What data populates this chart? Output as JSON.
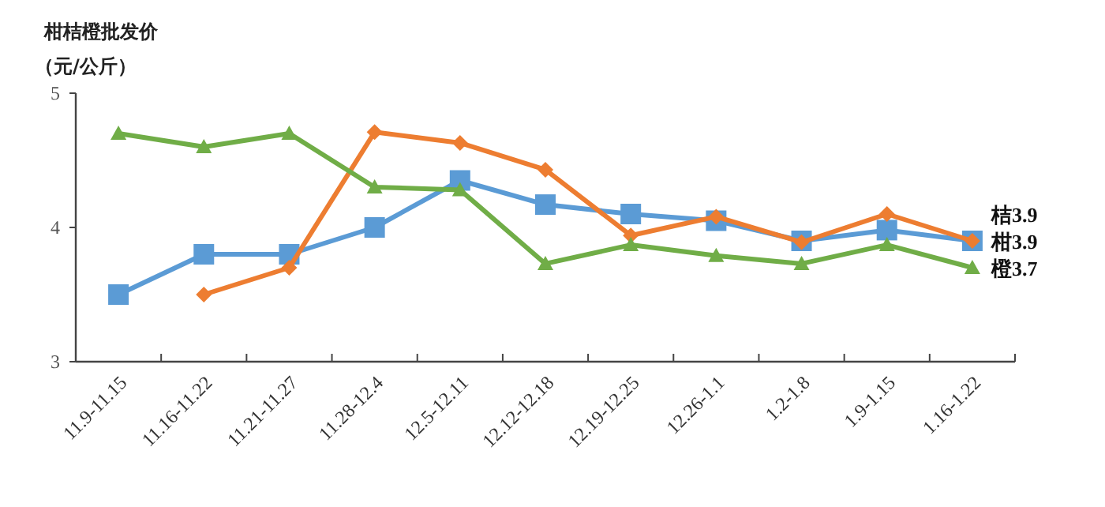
{
  "chart_data": {
    "type": "line",
    "title": "柑桔橙批发价",
    "subtitle": "（元/公斤）",
    "categories": [
      "11.9-11.15",
      "11.16-11.22",
      "11.21-11.27",
      "11.28-12.4",
      "12.5-12.11",
      "12.12-12.18",
      "12.19-12.25",
      "12.26-1.1",
      "1.2-1.8",
      "1.9-1.15",
      "1.16-1.22"
    ],
    "series": [
      {
        "name": "柑",
        "color": "#5b9bd5",
        "marker": "square",
        "values": [
          3.5,
          3.8,
          3.8,
          4.0,
          4.35,
          4.17,
          4.1,
          4.05,
          3.9,
          3.98,
          3.9
        ],
        "value_labels": [
          null,
          null,
          null,
          null,
          null,
          null,
          null,
          null,
          null,
          null,
          "3.9"
        ]
      },
      {
        "name": "桔",
        "color": "#ed7d31",
        "marker": "diamond",
        "values": [
          null,
          3.5,
          3.7,
          4.71,
          4.63,
          4.43,
          3.94,
          4.08,
          3.89,
          4.1,
          3.9
        ],
        "value_labels": [
          null,
          null,
          null,
          null,
          null,
          null,
          null,
          null,
          null,
          null,
          "3.9"
        ]
      },
      {
        "name": "橙",
        "color": "#70ad47",
        "marker": "triangle",
        "values": [
          4.7,
          4.6,
          4.7,
          4.3,
          4.28,
          3.73,
          3.87,
          3.79,
          3.73,
          3.87,
          3.7
        ],
        "value_labels": [
          null,
          null,
          null,
          null,
          null,
          null,
          null,
          null,
          null,
          null,
          "3.7"
        ]
      }
    ],
    "ylim": [
      3,
      5
    ],
    "yticks": [
      3,
      4,
      5
    ],
    "grid": false,
    "legend": false
  }
}
